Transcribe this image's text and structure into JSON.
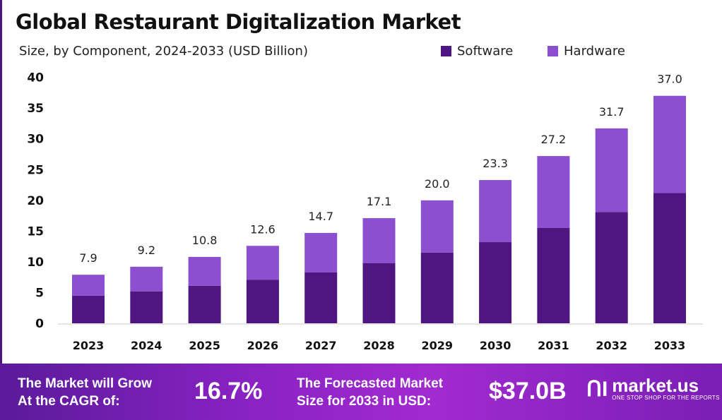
{
  "title": "Global Restaurant Digitalization Market",
  "subtitle": "Size, by Component, 2024-2033 (USD Billion)",
  "colors": {
    "software": "#4f1580",
    "hardware": "#8c4fcf",
    "banner": "#8a22c4"
  },
  "chart_data": {
    "type": "bar",
    "stacked": true,
    "categories": [
      "2023",
      "2024",
      "2025",
      "2026",
      "2027",
      "2028",
      "2029",
      "2030",
      "2031",
      "2032",
      "2033"
    ],
    "series": [
      {
        "name": "Software",
        "values": [
          4.5,
          5.2,
          6.1,
          7.1,
          8.3,
          9.8,
          11.5,
          13.2,
          15.5,
          18.1,
          21.2
        ]
      },
      {
        "name": "Hardware",
        "values": [
          3.4,
          4.0,
          4.7,
          5.5,
          6.4,
          7.3,
          8.5,
          10.1,
          11.7,
          13.6,
          15.8
        ]
      }
    ],
    "totals": [
      "7.9",
      "9.2",
      "10.8",
      "12.6",
      "14.7",
      "17.1",
      "20.0",
      "23.3",
      "27.2",
      "31.7",
      "37.0"
    ],
    "yticks": [
      "0",
      "5",
      "10",
      "15",
      "20",
      "25",
      "30",
      "35",
      "40"
    ],
    "ylim": [
      0,
      40
    ],
    "legend_position": "top-right",
    "grid": false
  },
  "banner": {
    "cagr_label_1": "The Market will Grow",
    "cagr_label_2": "At the CAGR of:",
    "cagr_value": "16.7%",
    "forecast_label_1": "The Forecasted Market",
    "forecast_label_2": "Size for 2033 in USD:",
    "forecast_value": "$37.0B",
    "logo_name": "market.us",
    "logo_tagline": "ONE STOP SHOP FOR THE REPORTS"
  }
}
